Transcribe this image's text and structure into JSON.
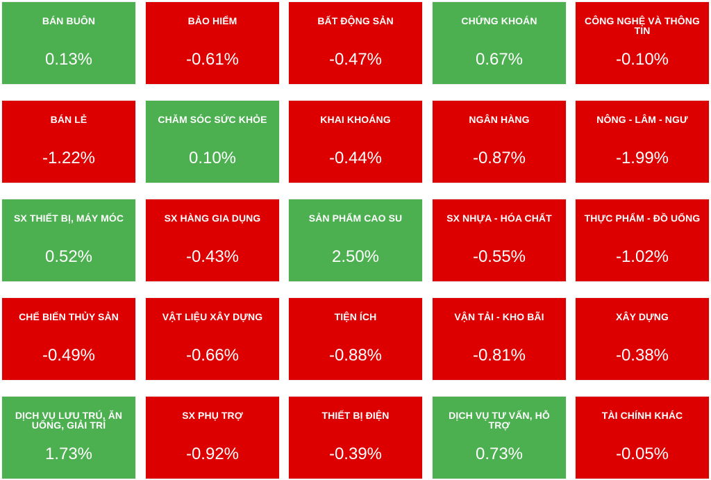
{
  "colors": {
    "up": "#4caf50",
    "down": "#dc0000",
    "text": "#ffffff"
  },
  "sectors": [
    {
      "name": "BÁN BUÔN",
      "change": "0.13%",
      "trend": "up"
    },
    {
      "name": "BẢO HIỂM",
      "change": "-0.61%",
      "trend": "down"
    },
    {
      "name": "BẤT ĐỘNG SẢN",
      "change": "-0.47%",
      "trend": "down"
    },
    {
      "name": "CHỨNG KHOÁN",
      "change": "0.67%",
      "trend": "up"
    },
    {
      "name": "CÔNG NGHỆ VÀ THÔNG TIN",
      "change": "-0.10%",
      "trend": "down"
    },
    {
      "name": "BÁN LẺ",
      "change": "-1.22%",
      "trend": "down"
    },
    {
      "name": "CHĂM SÓC SỨC KHỎE",
      "change": "0.10%",
      "trend": "up"
    },
    {
      "name": "KHAI KHOÁNG",
      "change": "-0.44%",
      "trend": "down"
    },
    {
      "name": "NGÂN HÀNG",
      "change": "-0.87%",
      "trend": "down"
    },
    {
      "name": "NÔNG - LÂM - NGƯ",
      "change": "-1.99%",
      "trend": "down"
    },
    {
      "name": "SX THIẾT BỊ, MÁY MÓC",
      "change": "0.52%",
      "trend": "up"
    },
    {
      "name": "SX HÀNG GIA DỤNG",
      "change": "-0.43%",
      "trend": "down"
    },
    {
      "name": "SẢN PHẨM CAO SU",
      "change": "2.50%",
      "trend": "up"
    },
    {
      "name": "SX NHỰA - HÓA CHẤT",
      "change": "-0.55%",
      "trend": "down"
    },
    {
      "name": "THỰC PHẨM - ĐỒ UỐNG",
      "change": "-1.02%",
      "trend": "down"
    },
    {
      "name": "CHẾ BIẾN THỦY SẢN",
      "change": "-0.49%",
      "trend": "down"
    },
    {
      "name": "VẬT LIỆU XÂY DỰNG",
      "change": "-0.66%",
      "trend": "down"
    },
    {
      "name": "TIỆN ÍCH",
      "change": "-0.88%",
      "trend": "down"
    },
    {
      "name": "VẬN TẢI - KHO BÃI",
      "change": "-0.81%",
      "trend": "down"
    },
    {
      "name": "XÂY DỰNG",
      "change": "-0.38%",
      "trend": "down"
    },
    {
      "name": "DỊCH VỤ LƯU TRÚ, ĂN UỐNG, GIẢI TRÍ",
      "change": "1.73%",
      "trend": "up"
    },
    {
      "name": "SX PHỤ TRỢ",
      "change": "-0.92%",
      "trend": "down"
    },
    {
      "name": "THIẾT BỊ ĐIỆN",
      "change": "-0.39%",
      "trend": "down"
    },
    {
      "name": "DỊCH VỤ TƯ VẤN, HỖ TRỢ",
      "change": "0.73%",
      "trend": "up"
    },
    {
      "name": "TÀI CHÍNH KHÁC",
      "change": "-0.05%",
      "trend": "down"
    }
  ]
}
